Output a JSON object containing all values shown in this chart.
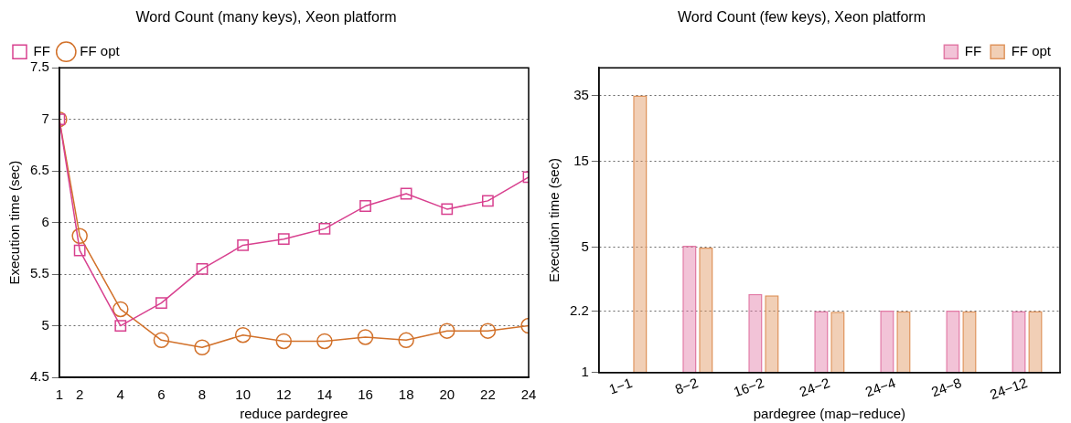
{
  "chart_data": [
    {
      "type": "line",
      "title": "Word Count (many keys), Xeon platform",
      "xlabel": "reduce pardegree",
      "ylabel": "Execution time (sec)",
      "x": [
        1,
        2,
        4,
        6,
        8,
        10,
        12,
        14,
        16,
        18,
        20,
        22,
        24
      ],
      "series": [
        {
          "name": "FF",
          "color": "#d8418f",
          "marker": "square",
          "values": [
            7.0,
            5.73,
            5.0,
            5.22,
            5.55,
            5.78,
            5.84,
            5.94,
            6.16,
            6.28,
            6.13,
            6.21,
            6.44
          ]
        },
        {
          "name": "FF opt",
          "color": "#d2712a",
          "marker": "circle",
          "values": [
            7.0,
            5.87,
            5.16,
            4.86,
            4.79,
            4.91,
            4.85,
            4.85,
            4.89,
            4.86,
            4.95,
            4.95,
            5.0
          ]
        }
      ],
      "xlim": [
        1,
        24
      ],
      "xticks": [
        1,
        2,
        4,
        6,
        8,
        10,
        12,
        14,
        16,
        18,
        20,
        22,
        24
      ],
      "ylim": [
        4.5,
        7.5
      ],
      "yticks": [
        4.5,
        5,
        5.5,
        6,
        6.5,
        7,
        7.5
      ],
      "grid": "y",
      "legend": "top left"
    },
    {
      "type": "bar",
      "title": "Word Count (few keys), Xeon platform",
      "xlabel": "pardegree (map−reduce)",
      "ylabel": "Execution time (sec)",
      "categories": [
        "1−1",
        "8−2",
        "16−2",
        "24−2",
        "24−4",
        "24−8",
        "24−12"
      ],
      "series": [
        {
          "name": "FF",
          "color": "#e27aa6",
          "values": [
            null,
            5.09,
            2.74,
            2.2,
            2.21,
            2.21,
            2.2
          ]
        },
        {
          "name": "FF opt",
          "color": "#e0955e",
          "values": [
            35,
            4.97,
            2.69,
            2.18,
            2.19,
            2.19,
            2.2
          ]
        }
      ],
      "log": "y",
      "ylim": [
        1,
        50
      ],
      "yticks": [
        1,
        2.2,
        5,
        15,
        35
      ],
      "grid": "y",
      "legend": "top right"
    }
  ]
}
